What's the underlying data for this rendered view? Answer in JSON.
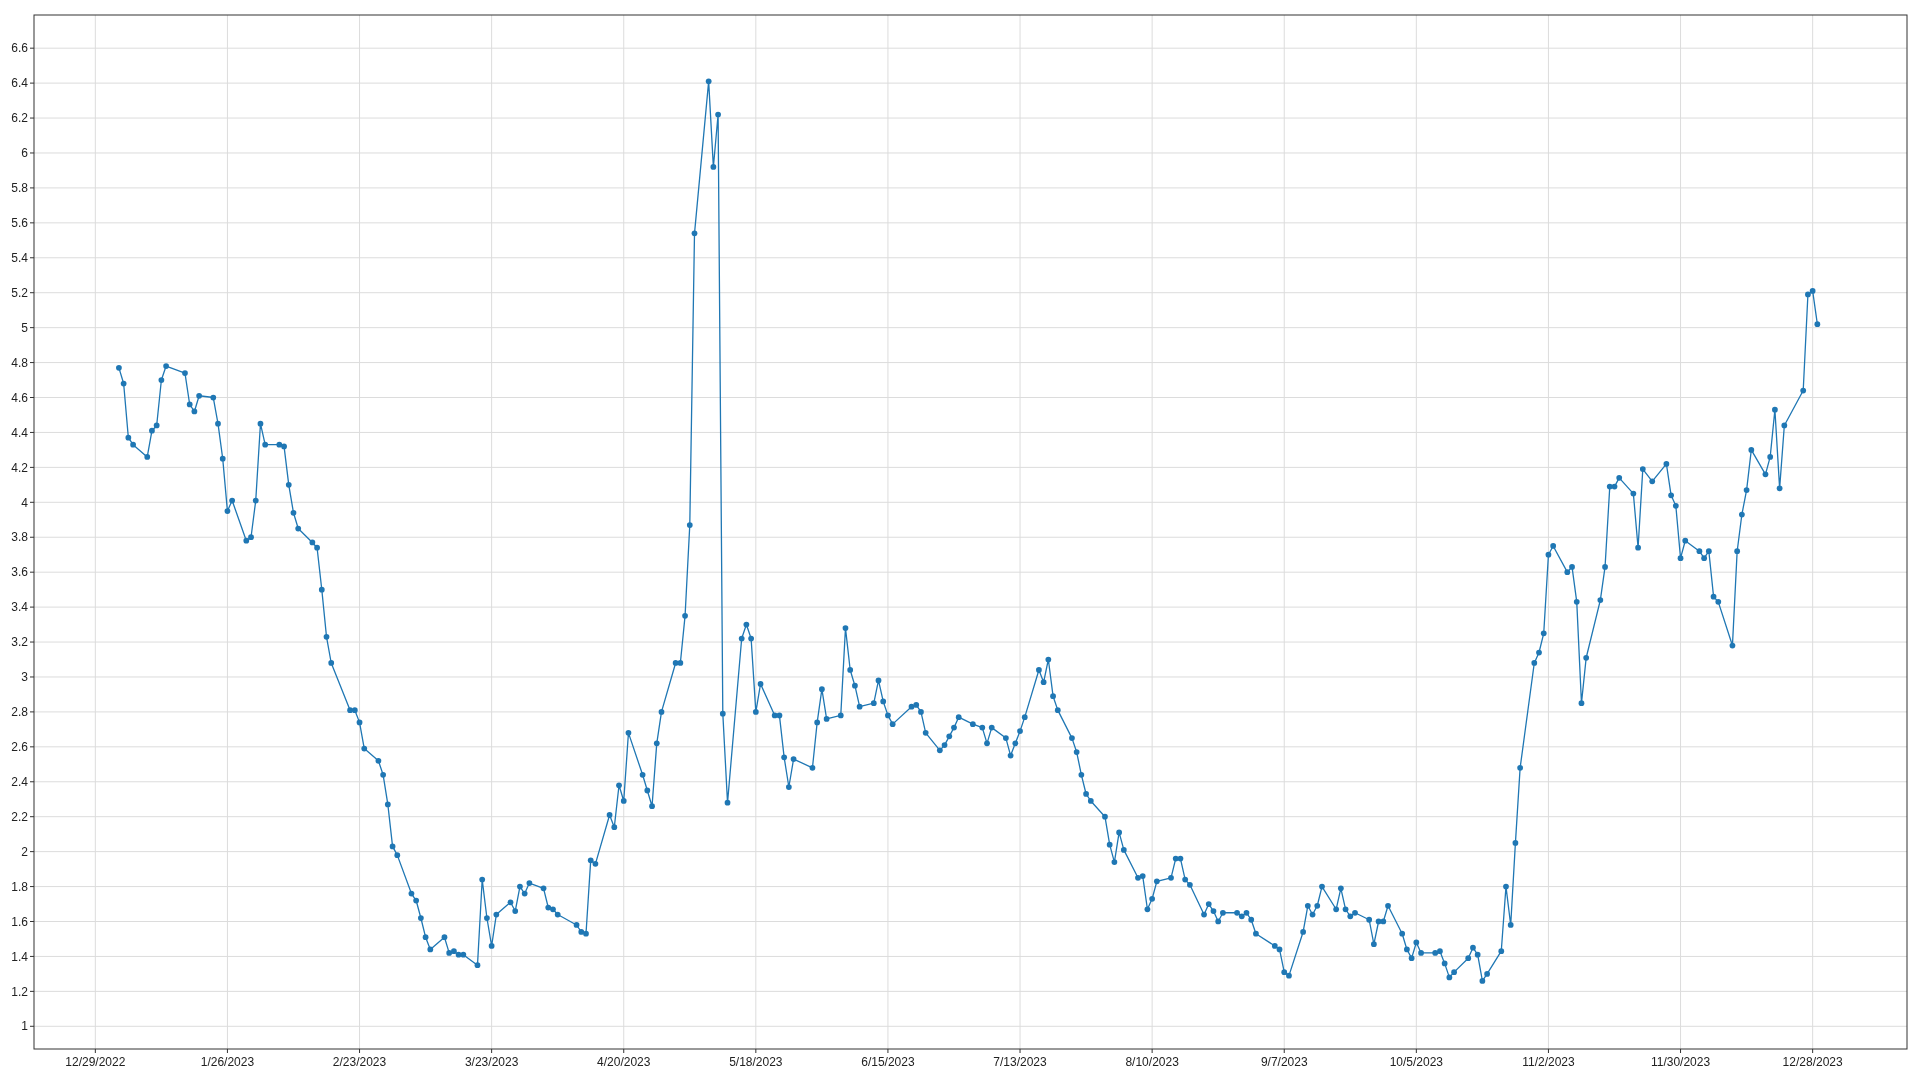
{
  "chart_data": {
    "type": "line",
    "xlim": [
      "2022-12-16",
      "2024-01-17"
    ],
    "xticks": [
      {
        "value": "2022-12-29",
        "label": "12/29/2022"
      },
      {
        "value": "2023-01-26",
        "label": "1/26/2023"
      },
      {
        "value": "2023-02-23",
        "label": "2/23/2023"
      },
      {
        "value": "2023-03-23",
        "label": "3/23/2023"
      },
      {
        "value": "2023-04-20",
        "label": "4/20/2023"
      },
      {
        "value": "2023-05-18",
        "label": "5/18/2023"
      },
      {
        "value": "2023-06-15",
        "label": "6/15/2023"
      },
      {
        "value": "2023-07-13",
        "label": "7/13/2023"
      },
      {
        "value": "2023-08-10",
        "label": "8/10/2023"
      },
      {
        "value": "2023-09-07",
        "label": "9/7/2023"
      },
      {
        "value": "2023-10-05",
        "label": "10/5/2023"
      },
      {
        "value": "2023-11-02",
        "label": "11/2/2023"
      },
      {
        "value": "2023-11-30",
        "label": "11/30/2023"
      },
      {
        "value": "2023-12-28",
        "label": "12/28/2023"
      }
    ],
    "ylim": [
      0.87,
      6.79
    ],
    "yticks": [
      1,
      1.2,
      1.4,
      1.6,
      1.8,
      2,
      2.2,
      2.4,
      2.6,
      2.8,
      3,
      3.2,
      3.4,
      3.6,
      3.8,
      4,
      4.2,
      4.4,
      4.6,
      4.8,
      5,
      5.2,
      5.4,
      5.6,
      5.8,
      6,
      6.2,
      6.4,
      6.6
    ],
    "grid": true,
    "marker": "circle",
    "line_style": "solid",
    "x": [
      "2023-01-03",
      "2023-01-04",
      "2023-01-05",
      "2023-01-06",
      "2023-01-09",
      "2023-01-10",
      "2023-01-11",
      "2023-01-12",
      "2023-01-13",
      "2023-01-17",
      "2023-01-18",
      "2023-01-19",
      "2023-01-20",
      "2023-01-23",
      "2023-01-24",
      "2023-01-25",
      "2023-01-26",
      "2023-01-27",
      "2023-01-30",
      "2023-01-31",
      "2023-02-01",
      "2023-02-02",
      "2023-02-03",
      "2023-02-06",
      "2023-02-07",
      "2023-02-08",
      "2023-02-09",
      "2023-02-10",
      "2023-02-13",
      "2023-02-14",
      "2023-02-15",
      "2023-02-16",
      "2023-02-17",
      "2023-02-21",
      "2023-02-22",
      "2023-02-23",
      "2023-02-24",
      "2023-02-27",
      "2023-02-28",
      "2023-03-01",
      "2023-03-02",
      "2023-03-03",
      "2023-03-06",
      "2023-03-07",
      "2023-03-08",
      "2023-03-09",
      "2023-03-10",
      "2023-03-13",
      "2023-03-14",
      "2023-03-15",
      "2023-03-16",
      "2023-03-17",
      "2023-03-20",
      "2023-03-21",
      "2023-03-22",
      "2023-03-23",
      "2023-03-24",
      "2023-03-27",
      "2023-03-28",
      "2023-03-29",
      "2023-03-30",
      "2023-03-31",
      "2023-04-03",
      "2023-04-04",
      "2023-04-05",
      "2023-04-06",
      "2023-04-10",
      "2023-04-11",
      "2023-04-12",
      "2023-04-13",
      "2023-04-14",
      "2023-04-17",
      "2023-04-18",
      "2023-04-19",
      "2023-04-20",
      "2023-04-21",
      "2023-04-24",
      "2023-04-25",
      "2023-04-26",
      "2023-04-27",
      "2023-04-28",
      "2023-05-01",
      "2023-05-02",
      "2023-05-03",
      "2023-05-04",
      "2023-05-05",
      "2023-05-08",
      "2023-05-09",
      "2023-05-10",
      "2023-05-11",
      "2023-05-12",
      "2023-05-15",
      "2023-05-16",
      "2023-05-17",
      "2023-05-18",
      "2023-05-19",
      "2023-05-22",
      "2023-05-23",
      "2023-05-24",
      "2023-05-25",
      "2023-05-26",
      "2023-05-30",
      "2023-05-31",
      "2023-06-01",
      "2023-06-02",
      "2023-06-05",
      "2023-06-06",
      "2023-06-07",
      "2023-06-08",
      "2023-06-09",
      "2023-06-12",
      "2023-06-13",
      "2023-06-14",
      "2023-06-15",
      "2023-06-16",
      "2023-06-20",
      "2023-06-21",
      "2023-06-22",
      "2023-06-23",
      "2023-06-26",
      "2023-06-27",
      "2023-06-28",
      "2023-06-29",
      "2023-06-30",
      "2023-07-03",
      "2023-07-05",
      "2023-07-06",
      "2023-07-07",
      "2023-07-10",
      "2023-07-11",
      "2023-07-12",
      "2023-07-13",
      "2023-07-14",
      "2023-07-17",
      "2023-07-18",
      "2023-07-19",
      "2023-07-20",
      "2023-07-21",
      "2023-07-24",
      "2023-07-25",
      "2023-07-26",
      "2023-07-27",
      "2023-07-28",
      "2023-07-31",
      "2023-08-01",
      "2023-08-02",
      "2023-08-03",
      "2023-08-04",
      "2023-08-07",
      "2023-08-08",
      "2023-08-09",
      "2023-08-10",
      "2023-08-11",
      "2023-08-14",
      "2023-08-15",
      "2023-08-16",
      "2023-08-17",
      "2023-08-18",
      "2023-08-21",
      "2023-08-22",
      "2023-08-23",
      "2023-08-24",
      "2023-08-25",
      "2023-08-28",
      "2023-08-29",
      "2023-08-30",
      "2023-08-31",
      "2023-09-01",
      "2023-09-05",
      "2023-09-06",
      "2023-09-07",
      "2023-09-08",
      "2023-09-11",
      "2023-09-12",
      "2023-09-13",
      "2023-09-14",
      "2023-09-15",
      "2023-09-18",
      "2023-09-19",
      "2023-09-20",
      "2023-09-21",
      "2023-09-22",
      "2023-09-25",
      "2023-09-26",
      "2023-09-27",
      "2023-09-28",
      "2023-09-29",
      "2023-10-02",
      "2023-10-03",
      "2023-10-04",
      "2023-10-05",
      "2023-10-06",
      "2023-10-09",
      "2023-10-10",
      "2023-10-11",
      "2023-10-12",
      "2023-10-13",
      "2023-10-16",
      "2023-10-17",
      "2023-10-18",
      "2023-10-19",
      "2023-10-20",
      "2023-10-23",
      "2023-10-24",
      "2023-10-25",
      "2023-10-26",
      "2023-10-27",
      "2023-10-30",
      "2023-10-31",
      "2023-11-01",
      "2023-11-02",
      "2023-11-03",
      "2023-11-06",
      "2023-11-07",
      "2023-11-08",
      "2023-11-09",
      "2023-11-10",
      "2023-11-13",
      "2023-11-14",
      "2023-11-15",
      "2023-11-16",
      "2023-11-17",
      "2023-11-20",
      "2023-11-21",
      "2023-11-22",
      "2023-11-24",
      "2023-11-27",
      "2023-11-28",
      "2023-11-29",
      "2023-11-30",
      "2023-12-01",
      "2023-12-04",
      "2023-12-05",
      "2023-12-06",
      "2023-12-07",
      "2023-12-08",
      "2023-12-11",
      "2023-12-12",
      "2023-12-13",
      "2023-12-14",
      "2023-12-15",
      "2023-12-18",
      "2023-12-19",
      "2023-12-20",
      "2023-12-21",
      "2023-12-22",
      "2023-12-26",
      "2023-12-27",
      "2023-12-28",
      "2023-12-29"
    ],
    "series": [
      {
        "color": "#1f77b4",
        "values": [
          4.77,
          4.68,
          4.37,
          4.33,
          4.26,
          4.41,
          4.44,
          4.7,
          4.78,
          4.74,
          4.56,
          4.52,
          4.61,
          4.6,
          4.45,
          4.25,
          3.95,
          4.01,
          3.78,
          3.8,
          4.01,
          4.45,
          4.33,
          4.33,
          4.32,
          4.1,
          3.94,
          3.85,
          3.77,
          3.74,
          3.5,
          3.23,
          3.08,
          2.81,
          2.81,
          2.74,
          2.59,
          2.52,
          2.44,
          2.27,
          2.03,
          1.98,
          1.76,
          1.72,
          1.62,
          1.51,
          1.44,
          1.51,
          1.42,
          1.43,
          1.41,
          1.41,
          1.35,
          1.84,
          1.62,
          1.46,
          1.64,
          1.71,
          1.66,
          1.8,
          1.76,
          1.82,
          1.79,
          1.68,
          1.67,
          1.64,
          1.58,
          1.54,
          1.53,
          1.95,
          1.93,
          2.21,
          2.14,
          2.38,
          2.29,
          2.68,
          2.44,
          2.35,
          2.26,
          2.62,
          2.8,
          3.08,
          3.08,
          3.35,
          3.87,
          5.54,
          6.41,
          5.92,
          6.22,
          2.79,
          2.28,
          3.22,
          3.3,
          3.22,
          2.8,
          2.96,
          2.78,
          2.78,
          2.54,
          2.37,
          2.53,
          2.48,
          2.74,
          2.93,
          2.76,
          2.78,
          3.28,
          3.04,
          2.95,
          2.83,
          2.85,
          2.98,
          2.86,
          2.78,
          2.73,
          2.83,
          2.84,
          2.8,
          2.68,
          2.58,
          2.61,
          2.66,
          2.71,
          2.77,
          2.73,
          2.71,
          2.62,
          2.71,
          2.65,
          2.55,
          2.62,
          2.69,
          2.77,
          3.04,
          2.97,
          3.1,
          2.89,
          2.81,
          2.65,
          2.57,
          2.44,
          2.33,
          2.29,
          2.2,
          2.04,
          1.94,
          2.11,
          2.01,
          1.85,
          1.86,
          1.67,
          1.73,
          1.83,
          1.85,
          1.96,
          1.96,
          1.84,
          1.81,
          1.64,
          1.7,
          1.66,
          1.6,
          1.65,
          1.65,
          1.63,
          1.65,
          1.61,
          1.53,
          1.46,
          1.44,
          1.31,
          1.29,
          1.54,
          1.69,
          1.64,
          1.69,
          1.8,
          1.67,
          1.79,
          1.67,
          1.63,
          1.65,
          1.61,
          1.47,
          1.6,
          1.6,
          1.69,
          1.53,
          1.44,
          1.39,
          1.48,
          1.42,
          1.42,
          1.43,
          1.36,
          1.28,
          1.31,
          1.39,
          1.45,
          1.41,
          1.26,
          1.3,
          1.43,
          1.8,
          1.58,
          2.05,
          2.48,
          3.08,
          3.14,
          3.25,
          3.7,
          3.75,
          3.6,
          3.63,
          3.43,
          2.85,
          3.11,
          3.44,
          3.63,
          4.09,
          4.09,
          4.14,
          4.05,
          3.74,
          4.19,
          4.12,
          4.22,
          4.04,
          3.98,
          3.68,
          3.78,
          3.72,
          3.68,
          3.72,
          3.46,
          3.43,
          3.18,
          3.72,
          3.93,
          4.07,
          4.3,
          4.16,
          4.26,
          4.53,
          4.08,
          4.44,
          4.64,
          5.19,
          5.21,
          5.02
        ]
      }
    ]
  }
}
